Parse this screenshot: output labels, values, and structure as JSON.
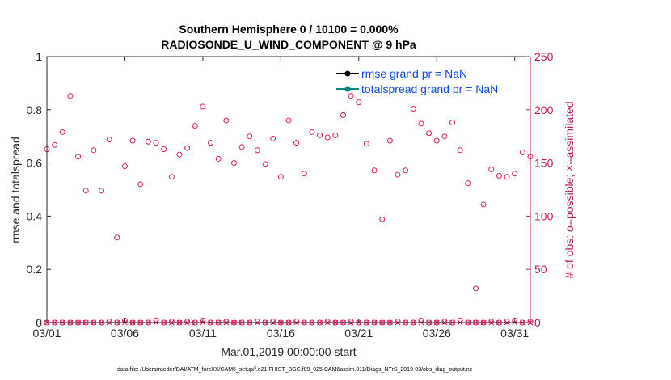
{
  "chart_data": {
    "type": "scatter",
    "title": [
      "Southern Hemisphere 0 / 10100 = 0.000%",
      "RADIOSONDE_U_WIND_COMPONENT @ 9 hPa"
    ],
    "xlabel": "Mar.01,2019 00:00:00 start",
    "ylabel_left": "rmse and totalspread",
    "ylabel_right": "# of obs: o=possible; ×=assimilated",
    "footnote": "data file: /Users/raeder/DAI/ATM_forcXX/CAM6_setup/f.e21.FHIST_BGC.f09_025.CAM6assim.011/Diags_NTrS_2019-03/obs_diag_output.nc",
    "xlim": [
      1,
      32
    ],
    "ylim_left": [
      0,
      1
    ],
    "ylim_right": [
      0,
      250
    ],
    "x_ticks": [
      1,
      6,
      11,
      16,
      21,
      26,
      31
    ],
    "x_tick_labels": [
      "03/01",
      "03/06",
      "03/11",
      "03/16",
      "03/21",
      "03/26",
      "03/31"
    ],
    "y_left_ticks": [
      0,
      0.2,
      0.4,
      0.6,
      0.8,
      1
    ],
    "y_left_tick_labels": [
      "0",
      "0.2",
      "0.4",
      "0.6",
      "0.8",
      "1"
    ],
    "y_right_ticks": [
      0,
      50,
      100,
      150,
      200,
      250
    ],
    "y_right_tick_labels": [
      "0",
      "50",
      "100",
      "150",
      "200",
      "250"
    ],
    "legend": [
      {
        "label": "rmse grand pr = NaN",
        "color": "#000000"
      },
      {
        "label": "totalspread grand pr = NaN",
        "color": "#00897b"
      }
    ],
    "series": [
      {
        "name": "possible",
        "marker": "circle",
        "color": "#d81b60",
        "x": [
          1.0,
          1.5,
          2.0,
          2.5,
          3.0,
          3.5,
          4.0,
          4.5,
          5.0,
          5.5,
          6.0,
          6.5,
          7.0,
          7.5,
          8.0,
          8.5,
          9.0,
          9.5,
          10.0,
          10.5,
          11.0,
          11.5,
          12.0,
          12.5,
          13.0,
          13.5,
          14.0,
          14.5,
          15.0,
          15.5,
          16.0,
          16.5,
          17.0,
          17.5,
          18.0,
          18.5,
          19.0,
          19.5,
          20.0,
          20.5,
          21.0,
          21.5,
          22.0,
          22.5,
          23.0,
          23.5,
          24.0,
          24.5,
          25.0,
          25.5,
          26.0,
          26.5,
          27.0,
          27.5,
          28.0,
          28.5,
          29.0,
          29.5,
          30.0,
          30.5,
          31.0,
          31.5,
          32.0
        ],
        "values": [
          163,
          167,
          179,
          213,
          156,
          124,
          162,
          124,
          172,
          80,
          147,
          171,
          130,
          170,
          169,
          163,
          137,
          158,
          164,
          185,
          203,
          169,
          154,
          190,
          150,
          165,
          175,
          162,
          149,
          173,
          137,
          190,
          169,
          140,
          179,
          176,
          174,
          176,
          195,
          213,
          207,
          168,
          143,
          97,
          171,
          139,
          143,
          201,
          187,
          178,
          171,
          175,
          188,
          162,
          131,
          32,
          111,
          144,
          138,
          137,
          140,
          160,
          156
        ],
        "x_dup": [
          1.0
        ],
        "values_dup": [
          0
        ]
      },
      {
        "name": "possible_zero",
        "marker": "circle",
        "color": "#d81b60",
        "x": [
          1.0,
          1.5,
          2.0,
          2.5,
          3.0,
          3.5,
          4.0,
          4.5,
          5.0,
          5.5,
          6.0,
          6.5,
          7.0,
          7.5,
          8.0,
          8.5,
          9.0,
          9.5,
          10.0,
          10.5,
          11.0,
          11.5,
          12.0,
          12.5,
          13.0,
          13.5,
          14.0,
          14.5,
          15.0,
          15.5,
          16.0,
          16.5,
          17.0,
          17.5,
          18.0,
          18.5,
          19.0,
          19.5,
          20.0,
          20.5,
          21.0,
          21.5,
          22.0,
          22.5,
          23.0,
          23.5,
          24.0,
          24.5,
          25.0,
          25.5,
          26.0,
          26.5,
          27.0,
          27.5,
          28.0,
          28.5,
          29.0,
          29.5,
          30.0,
          30.5,
          31.0,
          31.5,
          32.0
        ],
        "values": [
          0,
          0,
          0,
          0,
          0,
          0,
          0,
          0,
          1,
          0,
          2,
          0,
          0,
          0,
          2,
          0,
          1,
          0,
          1,
          0,
          2,
          0,
          0,
          1,
          0,
          0,
          0,
          1,
          0,
          1,
          0,
          0,
          1,
          0,
          0,
          0,
          1,
          0,
          0,
          1,
          0,
          0,
          0,
          0,
          0,
          1,
          0,
          0,
          2,
          0,
          0,
          1,
          0,
          2,
          0,
          0,
          0,
          1,
          0,
          1,
          2,
          0,
          1
        ]
      },
      {
        "name": "assimilated",
        "marker": "x",
        "color": "#d81b60",
        "x": [
          1.0,
          1.5,
          2.0,
          2.5,
          3.0,
          3.5,
          4.0,
          4.5,
          5.0,
          5.5,
          6.0,
          6.5,
          7.0,
          7.5,
          8.0,
          8.5,
          9.0,
          9.5,
          10.0,
          10.5,
          11.0,
          11.5,
          12.0,
          12.5,
          13.0,
          13.5,
          14.0,
          14.5,
          15.0,
          15.5,
          16.0,
          16.5,
          17.0,
          17.5,
          18.0,
          18.5,
          19.0,
          19.5,
          20.0,
          20.5,
          21.0,
          21.5,
          22.0,
          22.5,
          23.0,
          23.5,
          24.0,
          24.5,
          25.0,
          25.5,
          26.0,
          26.5,
          27.0,
          27.5,
          28.0,
          28.5,
          29.0,
          29.5,
          30.0,
          30.5,
          31.0,
          31.5,
          32.0
        ],
        "values": [
          0,
          0,
          0,
          0,
          0,
          0,
          0,
          0,
          0,
          0,
          0,
          0,
          0,
          0,
          0,
          0,
          0,
          0,
          0,
          0,
          0,
          0,
          0,
          0,
          0,
          0,
          0,
          0,
          0,
          0,
          0,
          0,
          0,
          0,
          0,
          0,
          0,
          0,
          0,
          0,
          0,
          0,
          0,
          0,
          0,
          0,
          0,
          0,
          0,
          0,
          0,
          0,
          0,
          0,
          0,
          0,
          0,
          0,
          0,
          0,
          0,
          0,
          0
        ]
      }
    ],
    "colors": {
      "axis": "#262626",
      "right_axis": "#c2185b",
      "marker": "#d81b60",
      "legend_text": "#0d47e0"
    }
  }
}
